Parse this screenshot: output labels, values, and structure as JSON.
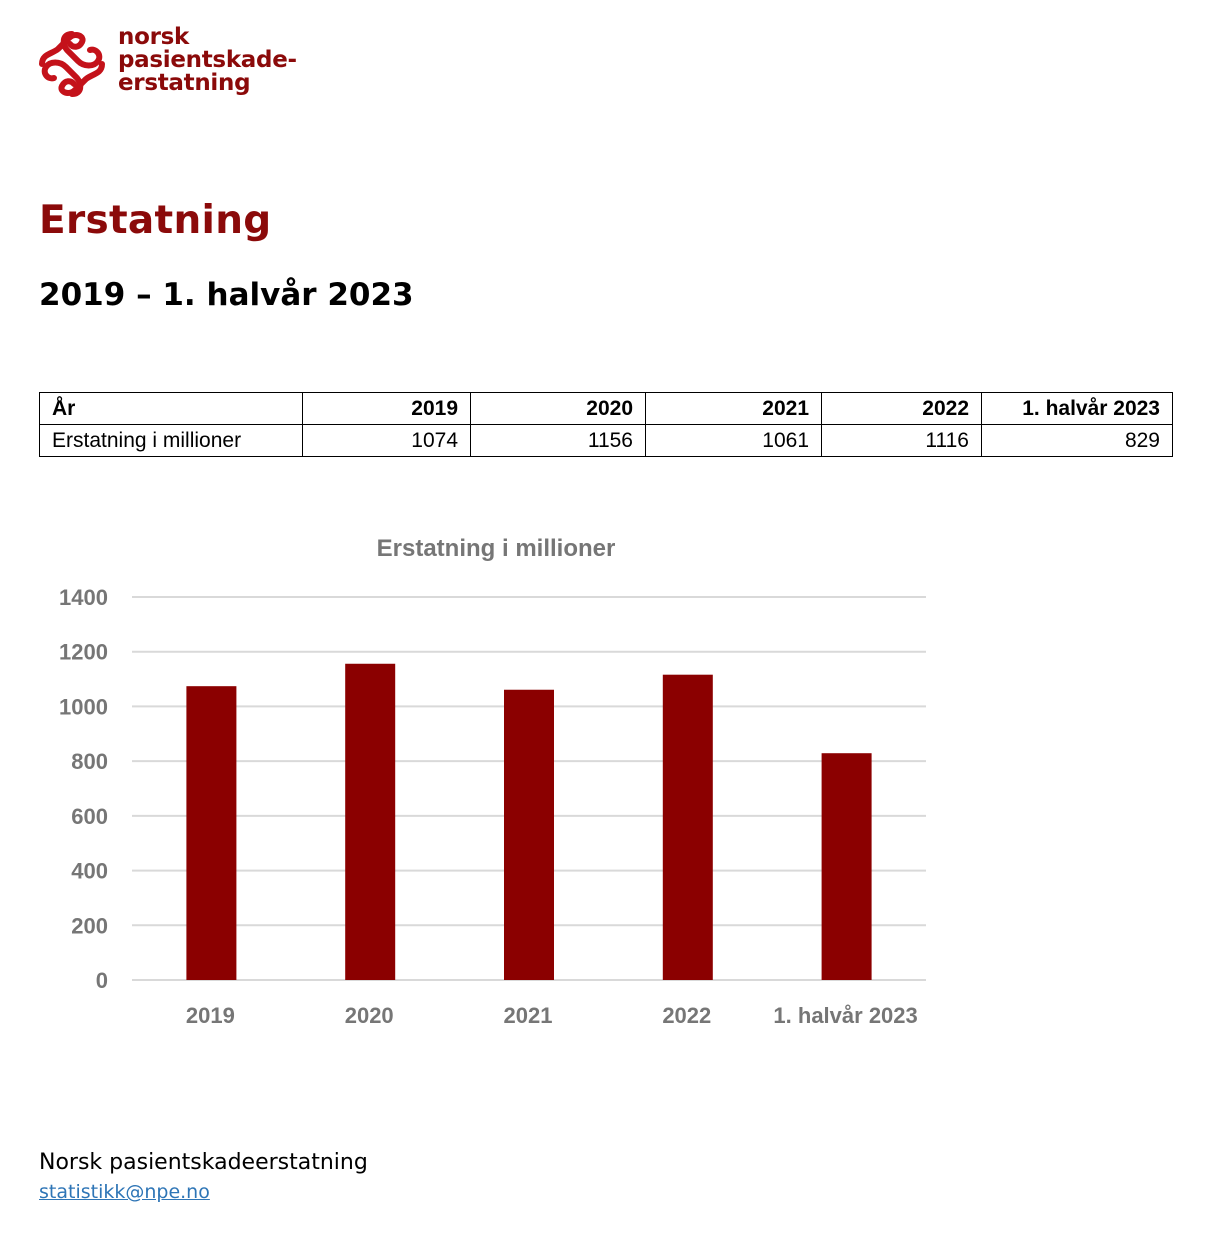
{
  "brand": {
    "name_lines": [
      "norsk",
      "pasientskade-",
      "erstatning"
    ],
    "color": "#8b0a0a"
  },
  "page": {
    "title": "Erstatning",
    "subtitle": "2019 – 1. halvår 2023"
  },
  "table": {
    "header": [
      "År",
      "2019",
      "2020",
      "2021",
      "2022",
      "1. halvår 2023"
    ],
    "rows": [
      [
        "Erstatning i millioner",
        "1074",
        "1156",
        "1061",
        "1116",
        "829"
      ]
    ]
  },
  "chart_data": {
    "type": "bar",
    "title": "Erstatning i millioner",
    "categories": [
      "2019",
      "2020",
      "2021",
      "2022",
      "1. halvår 2023"
    ],
    "values": [
      1074,
      1156,
      1061,
      1116,
      829
    ],
    "ylim": [
      0,
      1400
    ],
    "yticks": [
      "0",
      "200",
      "400",
      "600",
      "800",
      "1000",
      "1200",
      "1400"
    ],
    "grid": true,
    "bar_color": "#8b0000",
    "grid_color": "#d9d9d9",
    "label_color": "#767676"
  },
  "footer": {
    "org": "Norsk pasientskadeerstatning",
    "email": "statistikk@npe.no"
  }
}
